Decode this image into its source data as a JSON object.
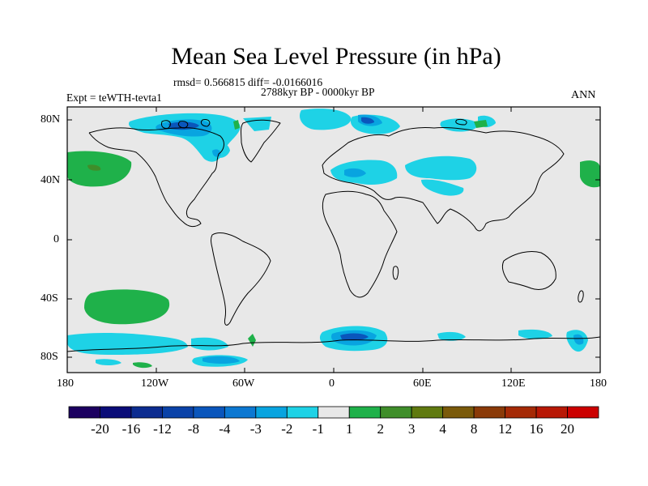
{
  "title": "Mean Sea Level Pressure (in hPa)",
  "stats": "rmsd= 0.566815 diff= -0.0166016",
  "period": "2788kyr BP - 0000kyr BP",
  "experiment": "Expt = teWTH-tevta1",
  "season": "ANN",
  "lat_labels": [
    "80N",
    "40N",
    "0",
    "40S",
    "80S"
  ],
  "lon_labels": [
    "180",
    "120W",
    "60W",
    "0",
    "60E",
    "120E",
    "180"
  ],
  "colorbar": {
    "colors": [
      "#1c0060",
      "#0a0c78",
      "#0c2c90",
      "#0a42a8",
      "#0a56bc",
      "#0c78d2",
      "#08a4e0",
      "#1ed2e6",
      "#e8e8e8",
      "#1fb14a",
      "#3f8e2a",
      "#607a10",
      "#7a5a0a",
      "#8a3a08",
      "#a52a06",
      "#b81805",
      "#cc0000"
    ],
    "labels": [
      "-20",
      "-16",
      "-12",
      "-8",
      "-4",
      "-3",
      "-2",
      "-1",
      "1",
      "2",
      "3",
      "4",
      "8",
      "12",
      "16",
      "20"
    ]
  }
}
